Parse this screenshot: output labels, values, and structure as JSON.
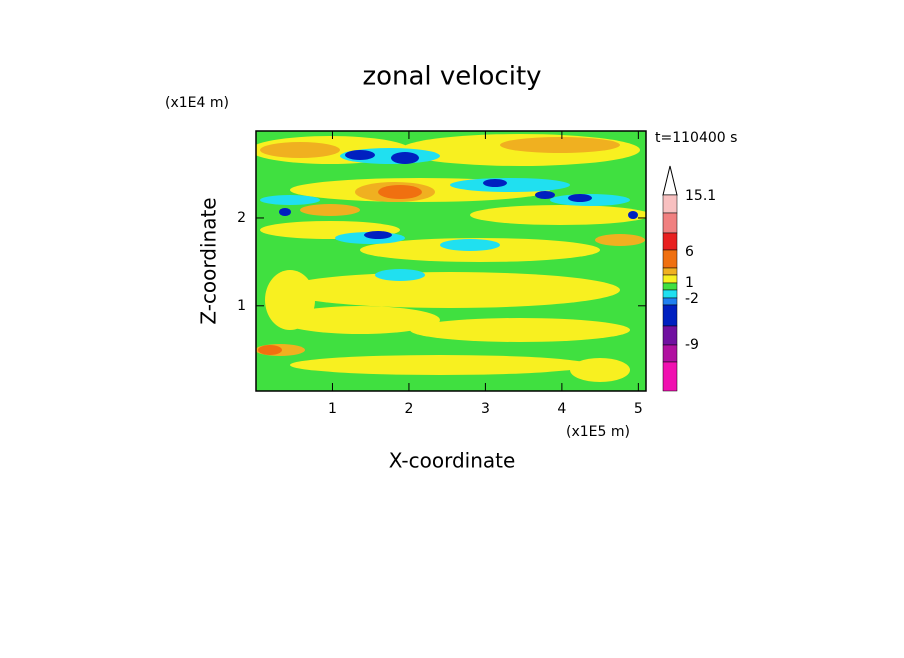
{
  "chart_data": {
    "type": "contour",
    "title": "zonal velocity",
    "x_label": "X-coordinate",
    "y_label": "Z-coordinate",
    "x_unit": "(x1E5 m)",
    "y_unit": "(x1E4 m)",
    "time_label": "t=110400 s",
    "xlim": [
      0,
      5.1
    ],
    "ylim": [
      0.03,
      2.99
    ],
    "xticks": [
      1,
      2,
      3,
      4,
      5
    ],
    "yticks": [
      1,
      2
    ],
    "colorbar_ticks": [
      15.1,
      6,
      1,
      -2,
      -9
    ],
    "colorbar_colors": [
      "#ffffff",
      "#f8c0c0",
      "#f08080",
      "#e82020",
      "#f07010",
      "#f0b020",
      "#f8f020",
      "#40e040",
      "#20e0f0",
      "#2080f0",
      "#0020c0",
      "#7010a0",
      "#b010a0",
      "#f010b0"
    ]
  }
}
